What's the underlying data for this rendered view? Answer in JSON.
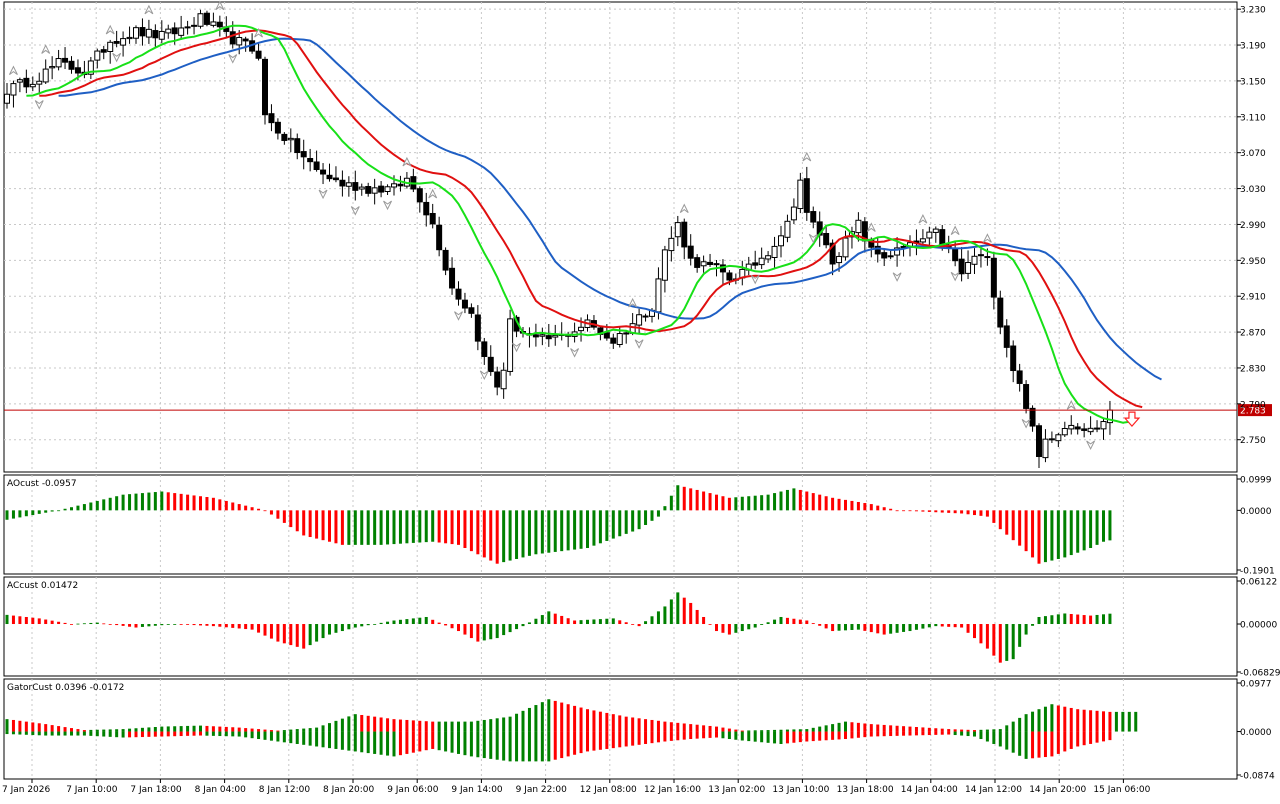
{
  "colors": {
    "up": "#008000",
    "down": "#ff0000",
    "jaw": "#1f5fc4",
    "teeth": "#e01010",
    "lips": "#18e018",
    "price_line": "#c00000",
    "price_badge": "#c00000",
    "fractal": "#9a9a9a",
    "grid": "#c8c8c8",
    "arrow": "#ff2020"
  },
  "price_panel": {
    "current_price_label": "2.783",
    "current_price": 2.783,
    "signal": "down-arrow"
  },
  "chart_data": [
    {
      "type": "candlestick",
      "title": "",
      "ylim": [
        2.714,
        3.238
      ],
      "yticks": [
        "3.230",
        "3.190",
        "3.150",
        "3.110",
        "3.070",
        "3.030",
        "2.990",
        "2.950",
        "2.910",
        "2.870",
        "2.830",
        "2.790",
        "2.750"
      ],
      "xticks": [
        "7 Jan 2026",
        "7 Jan 10:00",
        "7 Jan 18:00",
        "8 Jan 04:00",
        "8 Jan 12:00",
        "8 Jan 20:00",
        "9 Jan 06:00",
        "9 Jan 14:00",
        "9 Jan 22:00",
        "12 Jan 08:00",
        "12 Jan 16:00",
        "13 Jan 02:00",
        "13 Jan 10:00",
        "13 Jan 18:00",
        "14 Jan 04:00",
        "14 Jan 12:00",
        "14 Jan 20:00",
        "15 Jan 06:00"
      ],
      "keypoints": [
        [
          0,
          3.14
        ],
        [
          5,
          3.155
        ],
        [
          8,
          3.17
        ],
        [
          12,
          3.16
        ],
        [
          16,
          3.195
        ],
        [
          20,
          3.205
        ],
        [
          24,
          3.2
        ],
        [
          28,
          3.21
        ],
        [
          30,
          3.22
        ],
        [
          34,
          3.2
        ],
        [
          37,
          3.19
        ],
        [
          39,
          3.18
        ],
        [
          40,
          3.11
        ],
        [
          44,
          3.08
        ],
        [
          48,
          3.05
        ],
        [
          52,
          3.035
        ],
        [
          56,
          3.03
        ],
        [
          60,
          3.03
        ],
        [
          62,
          3.04
        ],
        [
          64,
          3.02
        ],
        [
          66,
          2.99
        ],
        [
          69,
          2.92
        ],
        [
          72,
          2.89
        ],
        [
          74,
          2.84
        ],
        [
          76,
          2.81
        ],
        [
          77,
          2.83
        ],
        [
          78,
          2.88
        ],
        [
          82,
          2.86
        ],
        [
          86,
          2.865
        ],
        [
          90,
          2.88
        ],
        [
          94,
          2.86
        ],
        [
          97,
          2.88
        ],
        [
          100,
          2.9
        ],
        [
          102,
          2.96
        ],
        [
          104,
          2.99
        ],
        [
          106,
          2.95
        ],
        [
          110,
          2.94
        ],
        [
          112,
          2.93
        ],
        [
          115,
          2.94
        ],
        [
          118,
          2.96
        ],
        [
          121,
          2.99
        ],
        [
          123,
          3.04
        ],
        [
          124,
          3.0
        ],
        [
          126,
          2.98
        ],
        [
          128,
          2.95
        ],
        [
          130,
          2.97
        ],
        [
          132,
          2.99
        ],
        [
          134,
          2.96
        ],
        [
          136,
          2.955
        ],
        [
          140,
          2.965
        ],
        [
          144,
          2.98
        ],
        [
          146,
          2.96
        ],
        [
          148,
          2.935
        ],
        [
          150,
          2.955
        ],
        [
          152,
          2.95
        ],
        [
          154,
          2.88
        ],
        [
          156,
          2.83
        ],
        [
          158,
          2.79
        ],
        [
          160,
          2.73
        ],
        [
          161,
          2.75
        ],
        [
          163,
          2.76
        ],
        [
          165,
          2.77
        ],
        [
          168,
          2.76
        ],
        [
          170,
          2.77
        ],
        [
          171,
          2.783
        ]
      ],
      "fractal_up_bars": [
        1,
        6,
        16,
        22,
        33,
        39,
        62,
        66,
        97,
        105,
        124,
        134,
        142,
        147,
        152,
        165
      ],
      "fractal_down_bars": [
        5,
        17,
        35,
        49,
        54,
        59,
        70,
        74,
        79,
        88,
        98,
        116,
        125,
        138,
        147,
        158,
        168
      ]
    },
    {
      "type": "bar",
      "title": "AOcust -0.0957",
      "ylim": [
        -0.1901,
        0.0999
      ],
      "yticks": [
        "0.0999",
        "0.0000",
        "-0.1901"
      ],
      "keypoints": [
        [
          0,
          -0.03
        ],
        [
          8,
          0.0
        ],
        [
          18,
          0.05
        ],
        [
          24,
          0.06
        ],
        [
          32,
          0.04
        ],
        [
          40,
          0.0
        ],
        [
          46,
          -0.08
        ],
        [
          52,
          -0.11
        ],
        [
          58,
          -0.11
        ],
        [
          66,
          -0.1
        ],
        [
          70,
          -0.11
        ],
        [
          76,
          -0.17
        ],
        [
          82,
          -0.14
        ],
        [
          90,
          -0.12
        ],
        [
          98,
          -0.06
        ],
        [
          101,
          -0.02
        ],
        [
          104,
          0.08
        ],
        [
          106,
          0.07
        ],
        [
          112,
          0.04
        ],
        [
          118,
          0.05
        ],
        [
          122,
          0.07
        ],
        [
          124,
          0.06
        ],
        [
          128,
          0.04
        ],
        [
          134,
          0.02
        ],
        [
          138,
          0.0
        ],
        [
          148,
          -0.01
        ],
        [
          152,
          -0.02
        ],
        [
          154,
          -0.06
        ],
        [
          158,
          -0.13
        ],
        [
          160,
          -0.17
        ],
        [
          164,
          -0.15
        ],
        [
          168,
          -0.12
        ],
        [
          170,
          -0.1
        ],
        [
          171,
          -0.0957
        ]
      ]
    },
    {
      "type": "bar",
      "title": "ACcust 0.01472",
      "ylim": [
        -0.06829,
        0.06122
      ],
      "yticks": [
        "0.06122",
        "0.00000",
        "-0.06829"
      ],
      "keypoints": [
        [
          0,
          0.013
        ],
        [
          5,
          0.008
        ],
        [
          10,
          0.0
        ],
        [
          14,
          0.002
        ],
        [
          20,
          -0.005
        ],
        [
          26,
          0.0
        ],
        [
          32,
          -0.003
        ],
        [
          38,
          -0.008
        ],
        [
          42,
          -0.025
        ],
        [
          46,
          -0.035
        ],
        [
          50,
          -0.015
        ],
        [
          54,
          -0.005
        ],
        [
          60,
          0.005
        ],
        [
          65,
          0.01
        ],
        [
          70,
          -0.01
        ],
        [
          73,
          -0.025
        ],
        [
          76,
          -0.02
        ],
        [
          80,
          -0.003
        ],
        [
          84,
          0.018
        ],
        [
          88,
          0.005
        ],
        [
          94,
          0.008
        ],
        [
          98,
          -0.003
        ],
        [
          102,
          0.025
        ],
        [
          104,
          0.045
        ],
        [
          106,
          0.03
        ],
        [
          110,
          -0.01
        ],
        [
          112,
          -0.015
        ],
        [
          116,
          -0.005
        ],
        [
          120,
          0.01
        ],
        [
          124,
          0.005
        ],
        [
          128,
          -0.01
        ],
        [
          132,
          -0.008
        ],
        [
          136,
          -0.015
        ],
        [
          140,
          -0.01
        ],
        [
          144,
          -0.003
        ],
        [
          148,
          -0.005
        ],
        [
          150,
          -0.02
        ],
        [
          152,
          -0.035
        ],
        [
          154,
          -0.055
        ],
        [
          156,
          -0.05
        ],
        [
          158,
          -0.015
        ],
        [
          160,
          0.01
        ],
        [
          164,
          0.015
        ],
        [
          168,
          0.012
        ],
        [
          171,
          0.01472
        ]
      ]
    },
    {
      "type": "bar",
      "title": "GatorCust 0.0396 -0.0172",
      "ylim": [
        -0.0874,
        0.0977
      ],
      "yticks": [
        "0.0977",
        "0.0000",
        "-0.0874"
      ],
      "upper_keypoints": [
        [
          0,
          0.025
        ],
        [
          6,
          0.015
        ],
        [
          12,
          0.003
        ],
        [
          18,
          0.005
        ],
        [
          24,
          0.01
        ],
        [
          30,
          0.012
        ],
        [
          36,
          0.008
        ],
        [
          42,
          0.002
        ],
        [
          48,
          0.008
        ],
        [
          54,
          0.035
        ],
        [
          60,
          0.025
        ],
        [
          66,
          0.02
        ],
        [
          72,
          0.02
        ],
        [
          78,
          0.03
        ],
        [
          84,
          0.065
        ],
        [
          90,
          0.045
        ],
        [
          96,
          0.03
        ],
        [
          102,
          0.02
        ],
        [
          106,
          0.015
        ],
        [
          110,
          0.01
        ],
        [
          114,
          0.002
        ],
        [
          118,
          0.003
        ],
        [
          124,
          0.005
        ],
        [
          130,
          0.02
        ],
        [
          134,
          0.015
        ],
        [
          140,
          0.01
        ],
        [
          146,
          0.005
        ],
        [
          150,
          0.003
        ],
        [
          154,
          0.005
        ],
        [
          158,
          0.035
        ],
        [
          162,
          0.055
        ],
        [
          166,
          0.045
        ],
        [
          171,
          0.0396
        ]
      ],
      "lower_keypoints": [
        [
          0,
          -0.005
        ],
        [
          6,
          -0.008
        ],
        [
          12,
          -0.008
        ],
        [
          18,
          -0.012
        ],
        [
          24,
          -0.01
        ],
        [
          30,
          -0.008
        ],
        [
          36,
          -0.01
        ],
        [
          42,
          -0.02
        ],
        [
          48,
          -0.03
        ],
        [
          54,
          -0.04
        ],
        [
          60,
          -0.05
        ],
        [
          66,
          -0.035
        ],
        [
          72,
          -0.05
        ],
        [
          78,
          -0.06
        ],
        [
          84,
          -0.06
        ],
        [
          90,
          -0.04
        ],
        [
          96,
          -0.03
        ],
        [
          102,
          -0.02
        ],
        [
          106,
          -0.015
        ],
        [
          110,
          -0.012
        ],
        [
          114,
          -0.018
        ],
        [
          120,
          -0.025
        ],
        [
          124,
          -0.02
        ],
        [
          130,
          -0.015
        ],
        [
          134,
          -0.01
        ],
        [
          140,
          -0.008
        ],
        [
          146,
          -0.006
        ],
        [
          150,
          -0.01
        ],
        [
          154,
          -0.03
        ],
        [
          158,
          -0.055
        ],
        [
          162,
          -0.05
        ],
        [
          166,
          -0.03
        ],
        [
          171,
          -0.0172
        ]
      ]
    }
  ]
}
